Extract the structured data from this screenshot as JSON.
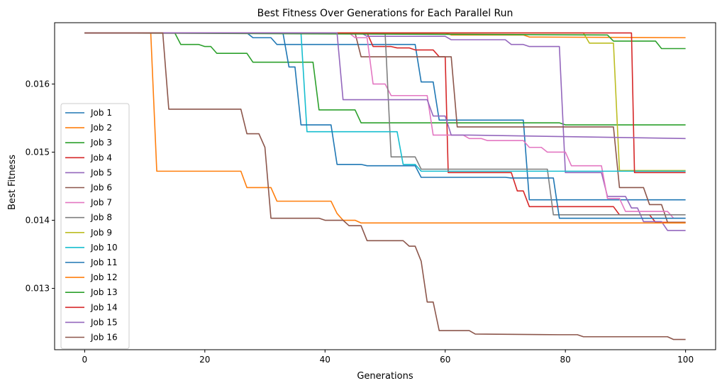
{
  "chart_data": {
    "type": "line",
    "title": "Best Fitness Over Generations for Each Parallel Run",
    "xlabel": "Generations",
    "ylabel": "Best Fitness",
    "xlim": [
      -5,
      105
    ],
    "ylim": [
      0.0121,
      0.0169
    ],
    "xticks": [
      0,
      20,
      40,
      60,
      80,
      100
    ],
    "xtick_labels": [
      "0",
      "20",
      "40",
      "60",
      "80",
      "100"
    ],
    "yticks": [
      0.013,
      0.014,
      0.015,
      0.016
    ],
    "ytick_labels": [
      "0.013",
      "0.014",
      "0.015",
      "0.016"
    ],
    "grid": false,
    "legend_position": "center-left",
    "series": [
      {
        "name": "Job 1",
        "color": "#1f77b4",
        "points": [
          [
            0,
            0.01675
          ],
          [
            27,
            0.01675
          ],
          [
            28,
            0.01668
          ],
          [
            31,
            0.01668
          ],
          [
            32,
            0.01658
          ],
          [
            55,
            0.01658
          ],
          [
            56,
            0.01603
          ],
          [
            58,
            0.01603
          ],
          [
            59,
            0.01547
          ],
          [
            73,
            0.01547
          ],
          [
            74,
            0.0143
          ],
          [
            100,
            0.0143
          ]
        ]
      },
      {
        "name": "Job 2",
        "color": "#ff7f0e",
        "points": [
          [
            0,
            0.01675
          ],
          [
            60,
            0.01675
          ],
          [
            61,
            0.01672
          ],
          [
            73,
            0.01672
          ],
          [
            74,
            0.01669
          ],
          [
            100,
            0.01668
          ]
        ]
      },
      {
        "name": "Job 3",
        "color": "#2ca02c",
        "points": [
          [
            0,
            0.01675
          ],
          [
            15,
            0.01675
          ],
          [
            16,
            0.01658
          ],
          [
            19,
            0.01658
          ],
          [
            20,
            0.01655
          ],
          [
            21,
            0.01655
          ],
          [
            22,
            0.01645
          ],
          [
            27,
            0.01645
          ],
          [
            28,
            0.01632
          ],
          [
            38,
            0.01632
          ],
          [
            39,
            0.01562
          ],
          [
            45,
            0.01562
          ],
          [
            46,
            0.01543
          ],
          [
            79,
            0.01543
          ],
          [
            80,
            0.0154
          ],
          [
            100,
            0.0154
          ]
        ]
      },
      {
        "name": "Job 4",
        "color": "#d62728",
        "points": [
          [
            0,
            0.01675
          ],
          [
            47,
            0.01675
          ],
          [
            48,
            0.01655
          ],
          [
            51,
            0.01655
          ],
          [
            52,
            0.01653
          ],
          [
            54,
            0.01653
          ],
          [
            55,
            0.0165
          ],
          [
            58,
            0.0165
          ],
          [
            59,
            0.0164
          ],
          [
            60,
            0.0164
          ],
          [
            60.5,
            0.0147
          ],
          [
            71,
            0.0147
          ],
          [
            72,
            0.01443
          ],
          [
            73,
            0.01443
          ],
          [
            74,
            0.0142
          ],
          [
            88,
            0.0142
          ],
          [
            89,
            0.01408
          ],
          [
            94,
            0.01408
          ],
          [
            95,
            0.01397
          ],
          [
            100,
            0.01397
          ]
        ]
      },
      {
        "name": "Job 5",
        "color": "#9467bd",
        "points": [
          [
            0,
            0.01675
          ],
          [
            46,
            0.01675
          ],
          [
            47,
            0.0167
          ],
          [
            60,
            0.0167
          ],
          [
            61,
            0.01665
          ],
          [
            70,
            0.01665
          ],
          [
            71,
            0.01658
          ],
          [
            73,
            0.01658
          ],
          [
            74,
            0.01655
          ],
          [
            79,
            0.01655
          ],
          [
            80,
            0.0147
          ],
          [
            86,
            0.0147
          ],
          [
            87,
            0.01435
          ],
          [
            90,
            0.01435
          ],
          [
            91,
            0.01418
          ],
          [
            92,
            0.01418
          ],
          [
            93,
            0.01398
          ],
          [
            96,
            0.01398
          ],
          [
            97,
            0.01385
          ],
          [
            100,
            0.01385
          ]
        ]
      },
      {
        "name": "Job 6",
        "color": "#8c564b",
        "points": [
          [
            0,
            0.01675
          ],
          [
            45,
            0.01675
          ],
          [
            46,
            0.0164
          ],
          [
            61,
            0.0164
          ],
          [
            62,
            0.01537
          ],
          [
            88,
            0.01537
          ],
          [
            89,
            0.01448
          ],
          [
            93,
            0.01448
          ],
          [
            94,
            0.01423
          ],
          [
            96,
            0.01423
          ],
          [
            97,
            0.01397
          ],
          [
            100,
            0.01397
          ]
        ]
      },
      {
        "name": "Job 7",
        "color": "#e377c2",
        "points": [
          [
            0,
            0.01675
          ],
          [
            44,
            0.01675
          ],
          [
            45,
            0.01668
          ],
          [
            47,
            0.01668
          ],
          [
            48,
            0.016
          ],
          [
            50,
            0.016
          ],
          [
            51,
            0.01583
          ],
          [
            57,
            0.01583
          ],
          [
            58,
            0.01525
          ],
          [
            63,
            0.01525
          ],
          [
            64,
            0.0152
          ],
          [
            66,
            0.0152
          ],
          [
            67,
            0.01517
          ],
          [
            73,
            0.01517
          ],
          [
            74,
            0.01507
          ],
          [
            76,
            0.01507
          ],
          [
            77,
            0.015
          ],
          [
            80,
            0.015
          ],
          [
            81,
            0.0148
          ],
          [
            86,
            0.0148
          ],
          [
            87,
            0.01432
          ],
          [
            89,
            0.01432
          ],
          [
            90,
            0.01413
          ],
          [
            92,
            0.01413
          ],
          [
            93,
            0.01413
          ],
          [
            97,
            0.01413
          ],
          [
            98,
            0.01403
          ],
          [
            100,
            0.01403
          ]
        ]
      },
      {
        "name": "Job 8",
        "color": "#7f7f7f",
        "points": [
          [
            0,
            0.01675
          ],
          [
            50,
            0.01675
          ],
          [
            51,
            0.01493
          ],
          [
            55,
            0.01493
          ],
          [
            56,
            0.01475
          ],
          [
            77,
            0.01475
          ],
          [
            78,
            0.01408
          ],
          [
            100,
            0.01408
          ]
        ]
      },
      {
        "name": "Job 9",
        "color": "#bcbd22",
        "points": [
          [
            0,
            0.01675
          ],
          [
            83,
            0.01675
          ],
          [
            84,
            0.0166
          ],
          [
            88,
            0.0166
          ],
          [
            89,
            0.01473
          ],
          [
            100,
            0.01473
          ]
        ]
      },
      {
        "name": "Job 10",
        "color": "#17becf",
        "points": [
          [
            0,
            0.01675
          ],
          [
            36,
            0.01675
          ],
          [
            37,
            0.0153
          ],
          [
            52,
            0.0153
          ],
          [
            53,
            0.01482
          ],
          [
            55,
            0.01482
          ],
          [
            56,
            0.01472
          ],
          [
            100,
            0.01472
          ]
        ]
      },
      {
        "name": "Job 11",
        "color": "#1f77b4",
        "points": [
          [
            0,
            0.01675
          ],
          [
            33,
            0.01675
          ],
          [
            34,
            0.01625
          ],
          [
            35,
            0.01625
          ],
          [
            36,
            0.0154
          ],
          [
            41,
            0.0154
          ],
          [
            42,
            0.01482
          ],
          [
            46,
            0.01482
          ],
          [
            47,
            0.0148
          ],
          [
            55,
            0.0148
          ],
          [
            56,
            0.01463
          ],
          [
            70,
            0.01463
          ],
          [
            71,
            0.01462
          ],
          [
            78,
            0.01462
          ],
          [
            79,
            0.01403
          ],
          [
            100,
            0.01403
          ]
        ]
      },
      {
        "name": "Job 12",
        "color": "#ff7f0e",
        "points": [
          [
            0,
            0.01675
          ],
          [
            10,
            0.01675
          ],
          [
            11,
            0.01675
          ],
          [
            12,
            0.01472
          ],
          [
            25,
            0.01472
          ],
          [
            26,
            0.01472
          ],
          [
            27,
            0.01448
          ],
          [
            31,
            0.01448
          ],
          [
            32,
            0.01428
          ],
          [
            41,
            0.01428
          ],
          [
            42,
            0.0141
          ],
          [
            43,
            0.014
          ],
          [
            45,
            0.014
          ],
          [
            46,
            0.01396
          ],
          [
            100,
            0.01396
          ]
        ]
      },
      {
        "name": "Job 13",
        "color": "#2ca02c",
        "points": [
          [
            0,
            0.01675
          ],
          [
            87,
            0.01672
          ],
          [
            88,
            0.01663
          ],
          [
            95,
            0.01663
          ],
          [
            96,
            0.01652
          ],
          [
            100,
            0.01652
          ]
        ]
      },
      {
        "name": "Job 14",
        "color": "#d62728",
        "points": [
          [
            0,
            0.01675
          ],
          [
            90,
            0.01675
          ],
          [
            91,
            0.01675
          ],
          [
            91.5,
            0.0147
          ],
          [
            100,
            0.0147
          ]
        ]
      },
      {
        "name": "Job 15",
        "color": "#9467bd",
        "points": [
          [
            0,
            0.01675
          ],
          [
            42,
            0.01675
          ],
          [
            43,
            0.01577
          ],
          [
            57,
            0.01577
          ],
          [
            58,
            0.01553
          ],
          [
            60,
            0.01553
          ],
          [
            61,
            0.01525
          ],
          [
            63,
            0.01525
          ],
          [
            64,
            0.01525
          ],
          [
            100,
            0.0152
          ]
        ]
      },
      {
        "name": "Job 16",
        "color": "#8c564b",
        "points": [
          [
            0,
            0.01675
          ],
          [
            13,
            0.01675
          ],
          [
            14,
            0.01563
          ],
          [
            26,
            0.01563
          ],
          [
            27,
            0.01527
          ],
          [
            29,
            0.01527
          ],
          [
            30,
            0.01507
          ],
          [
            31,
            0.01403
          ],
          [
            38,
            0.01403
          ],
          [
            39,
            0.01403
          ],
          [
            40,
            0.014
          ],
          [
            43,
            0.014
          ],
          [
            44,
            0.01392
          ],
          [
            46,
            0.01392
          ],
          [
            47,
            0.0137
          ],
          [
            53,
            0.0137
          ],
          [
            54,
            0.01362
          ],
          [
            55,
            0.01362
          ],
          [
            56,
            0.0134
          ],
          [
            57,
            0.0128
          ],
          [
            58,
            0.0128
          ],
          [
            59,
            0.01238
          ],
          [
            64,
            0.01238
          ],
          [
            65,
            0.01233
          ],
          [
            79,
            0.01232
          ],
          [
            82,
            0.01232
          ],
          [
            83,
            0.01229
          ],
          [
            97,
            0.01229
          ],
          [
            98,
            0.01225
          ],
          [
            100,
            0.01225
          ]
        ]
      }
    ]
  }
}
